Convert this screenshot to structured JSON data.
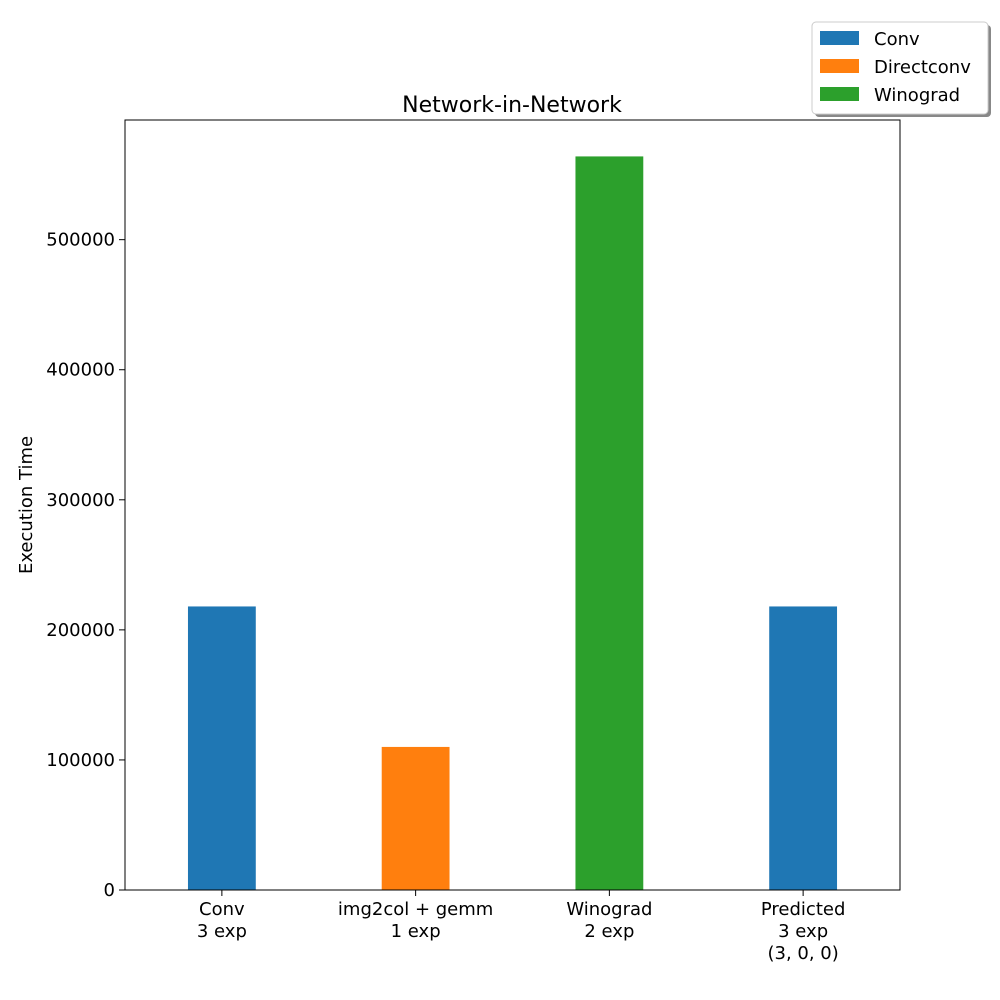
{
  "chart_data": {
    "type": "bar",
    "title": "Network-in-Network",
    "xlabel": "",
    "ylabel": "Execution Time",
    "ylim": [
      0,
      592000
    ],
    "yticks": [
      0,
      100000,
      200000,
      300000,
      400000,
      500000
    ],
    "ytick_labels": [
      "0",
      "100000",
      "200000",
      "300000",
      "400000",
      "500000"
    ],
    "categories": [
      [
        "Conv",
        "3 exp"
      ],
      [
        "img2col + gemm",
        "1 exp"
      ],
      [
        "Winograd",
        "2 exp"
      ],
      [
        "Predicted",
        "3 exp",
        "(3, 0, 0)"
      ]
    ],
    "values": [
      218000,
      110000,
      564000,
      218000
    ],
    "bar_series": [
      "Conv",
      "Directconv",
      "Winograd",
      "Conv"
    ],
    "legend": {
      "placement": "top-right, outside axes",
      "entries": [
        {
          "name": "Conv",
          "color": "#1f77b4"
        },
        {
          "name": "Directconv",
          "color": "#ff7f0e"
        },
        {
          "name": "Winograd",
          "color": "#2ca02c"
        }
      ]
    },
    "grid": false
  }
}
